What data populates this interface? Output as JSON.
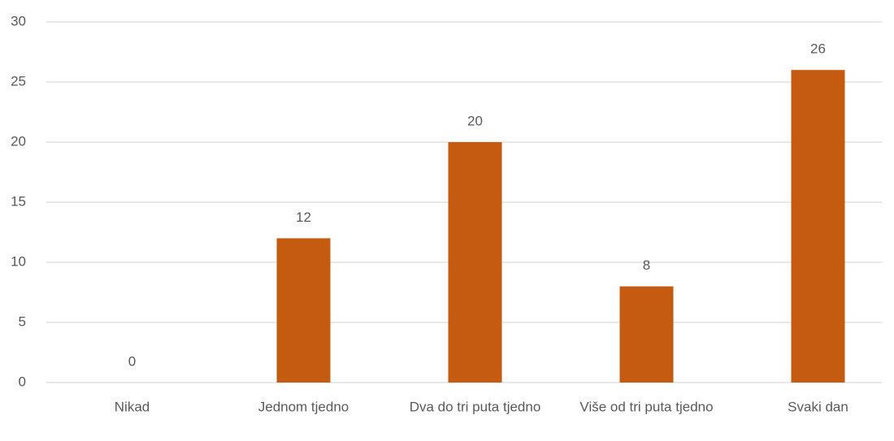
{
  "chart_data": {
    "type": "bar",
    "categories": [
      "Nikad",
      "Jednom tjedno",
      "Dva do tri puta tjedno",
      "Više od tri puta tjedno",
      "Svaki dan"
    ],
    "values": [
      0,
      12,
      20,
      8,
      26
    ],
    "color": "#c55a11",
    "ylim": [
      0,
      30
    ],
    "yticks": [
      0,
      5,
      10,
      15,
      20,
      25,
      30
    ],
    "grid": true
  }
}
